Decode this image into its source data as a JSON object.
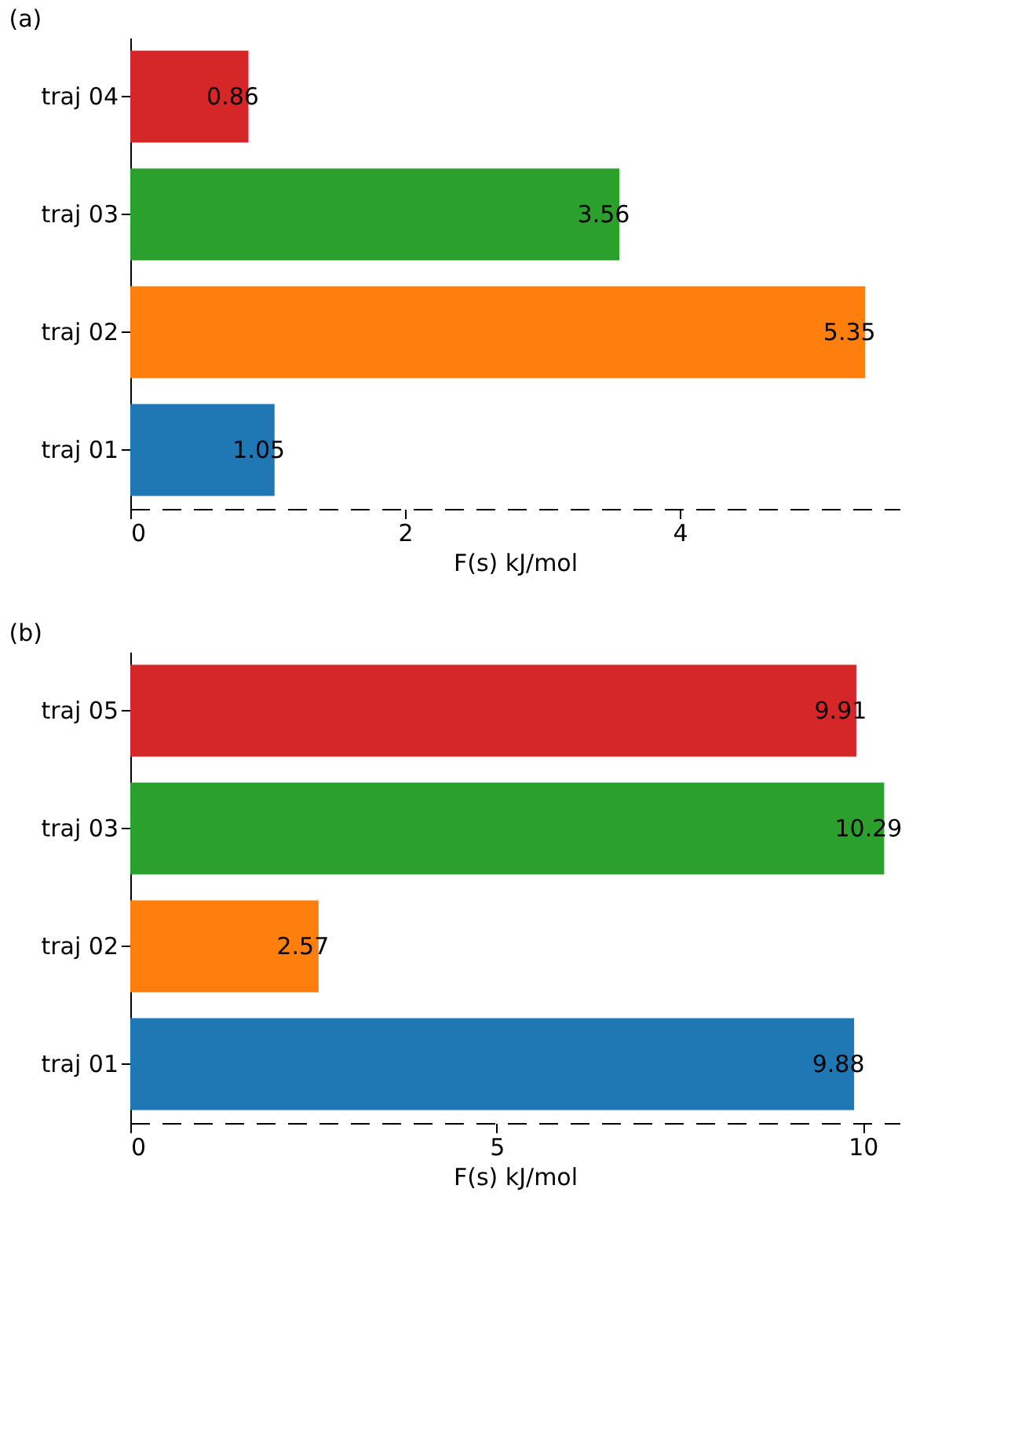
{
  "chart_data": [
    {
      "type": "bar",
      "orientation": "horizontal",
      "title": "(a)",
      "xlabel": "F(s) kJ/mol",
      "categories": [
        "traj 04",
        "traj 03",
        "traj 02",
        "traj 01"
      ],
      "values": [
        0.86,
        3.56,
        5.35,
        1.05
      ],
      "colors": [
        "#d62728",
        "#2ca02c",
        "#ff7f0e",
        "#1f77b4"
      ],
      "xlim": [
        0,
        5.6
      ],
      "xticks": [
        0,
        2,
        4
      ],
      "grid": false,
      "data_labels": true
    },
    {
      "type": "bar",
      "orientation": "horizontal",
      "title": "(b)",
      "xlabel": "F(s) kJ/mol",
      "categories": [
        "traj 05",
        "traj 03",
        "traj 02",
        "traj 01"
      ],
      "values": [
        9.91,
        10.29,
        2.57,
        9.88
      ],
      "colors": [
        "#d62728",
        "#2ca02c",
        "#ff7f0e",
        "#1f77b4"
      ],
      "xlim": [
        0,
        10.5
      ],
      "xticks": [
        0,
        5,
        10
      ],
      "grid": false,
      "data_labels": true
    }
  ]
}
